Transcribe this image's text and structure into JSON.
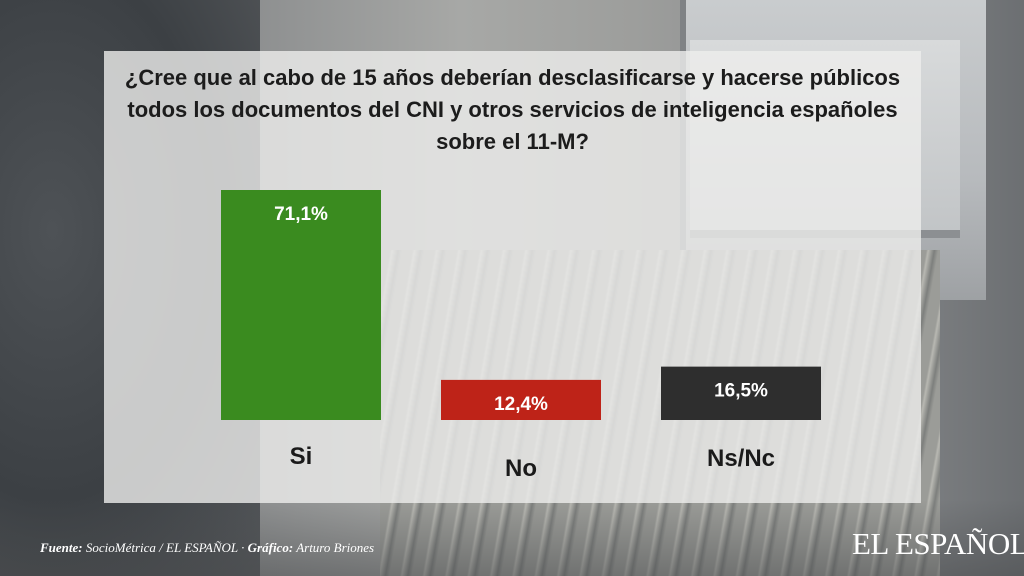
{
  "chart_data": {
    "type": "bar",
    "title": "¿Cree que al cabo de 15 años deberían desclasificarse y hacerse públicos todos los documentos del CNI y otros servicios de inteligencia españoles sobre el 11-M?",
    "categories": [
      "Si",
      "No",
      "Ns/Nc"
    ],
    "values": [
      71.1,
      12.4,
      16.5
    ],
    "value_labels": [
      "71,1%",
      "12,4%",
      "16,5%"
    ],
    "colors": [
      "#3a8b1f",
      "#be2318",
      "#2e2e2e"
    ],
    "xlabel": "",
    "ylabel": "",
    "ylim": [
      0,
      100
    ],
    "grid": false,
    "legend": "none"
  },
  "footer": {
    "source_label": "Fuente:",
    "source_value": "SocioMétrica / EL ESPAÑOL",
    "separator": "·",
    "graphic_label": "Gráfico:",
    "graphic_value": "Arturo Briones"
  },
  "brand": {
    "logo_text": "EL ESPAÑOL"
  }
}
